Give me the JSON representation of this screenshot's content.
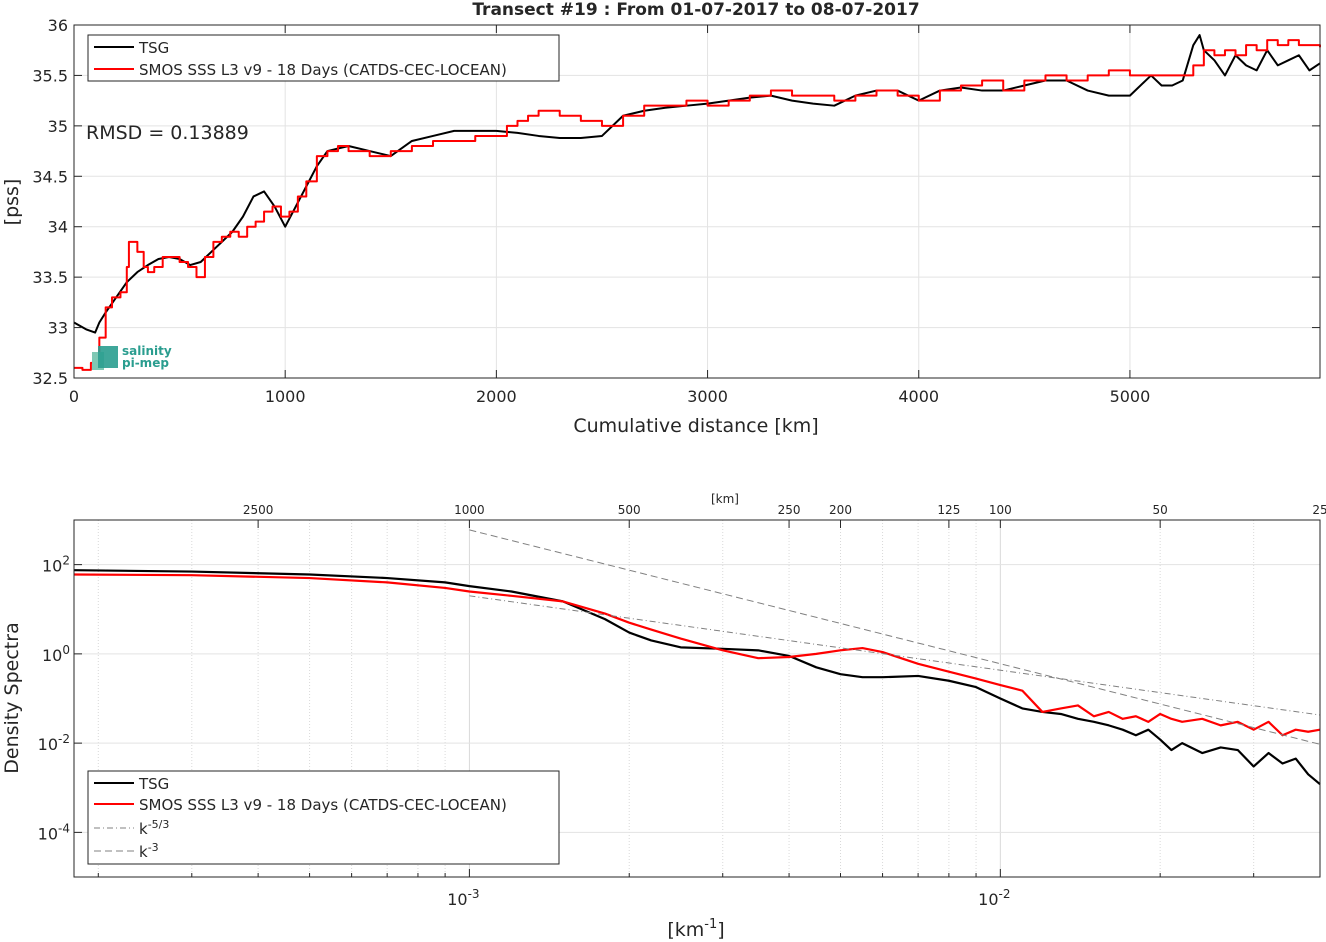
{
  "chart_data": [
    {
      "type": "line",
      "title": "Transect #19 : From 01-07-2017 to 08-07-2017",
      "xlabel": "Cumulative distance [km]",
      "ylabel": "[pss]",
      "xlim": [
        0,
        5900
      ],
      "ylim": [
        32.5,
        36
      ],
      "xticks": [
        "0",
        "1000",
        "2000",
        "3000",
        "4000",
        "5000"
      ],
      "yticks": [
        "32.5",
        "33",
        "33.5",
        "34",
        "34.5",
        "35",
        "35.5",
        "36"
      ],
      "grid": true,
      "legend_position": "top-left",
      "annotation": "RMSD = 0.13889",
      "logo": {
        "line1": "salinity",
        "line2": "pi-mep"
      },
      "series": [
        {
          "name": "TSG",
          "color": "#000000",
          "x": [
            0,
            60,
            100,
            120,
            150,
            200,
            250,
            300,
            350,
            400,
            450,
            500,
            550,
            600,
            650,
            700,
            750,
            800,
            850,
            900,
            950,
            1000,
            1050,
            1100,
            1150,
            1200,
            1300,
            1400,
            1500,
            1600,
            1700,
            1800,
            1900,
            2000,
            2100,
            2200,
            2300,
            2400,
            2500,
            2600,
            2700,
            2800,
            2900,
            3000,
            3100,
            3200,
            3300,
            3400,
            3500,
            3600,
            3700,
            3800,
            3900,
            4000,
            4100,
            4200,
            4300,
            4400,
            4500,
            4600,
            4700,
            4800,
            4900,
            5000,
            5100,
            5150,
            5200,
            5250,
            5300,
            5330,
            5350,
            5400,
            5450,
            5500,
            5550,
            5600,
            5650,
            5700,
            5750,
            5800,
            5850,
            5900
          ],
          "y": [
            33.05,
            32.98,
            32.95,
            33.05,
            33.15,
            33.3,
            33.45,
            33.55,
            33.62,
            33.68,
            33.7,
            33.68,
            33.62,
            33.65,
            33.75,
            33.85,
            33.95,
            34.1,
            34.3,
            34.35,
            34.2,
            34.0,
            34.2,
            34.4,
            34.6,
            34.75,
            34.8,
            34.75,
            34.7,
            34.85,
            34.9,
            34.95,
            34.95,
            34.95,
            34.93,
            34.9,
            34.88,
            34.88,
            34.9,
            35.1,
            35.15,
            35.18,
            35.2,
            35.22,
            35.25,
            35.28,
            35.3,
            35.25,
            35.22,
            35.2,
            35.3,
            35.35,
            35.35,
            35.25,
            35.35,
            35.38,
            35.35,
            35.35,
            35.4,
            35.45,
            35.45,
            35.35,
            35.3,
            35.3,
            35.5,
            35.4,
            35.4,
            35.45,
            35.8,
            35.9,
            35.75,
            35.65,
            35.5,
            35.7,
            35.6,
            35.55,
            35.75,
            35.6,
            35.65,
            35.7,
            35.55,
            35.62
          ]
        },
        {
          "name": "SMOS SSS L3 v9 - 18 Days (CATDS-CEC-LOCEAN)",
          "color": "#ff0000",
          "x": [
            0,
            40,
            80,
            100,
            120,
            150,
            180,
            220,
            250,
            260,
            300,
            330,
            350,
            380,
            420,
            460,
            500,
            540,
            580,
            620,
            660,
            700,
            740,
            780,
            820,
            860,
            900,
            940,
            980,
            1020,
            1060,
            1100,
            1150,
            1200,
            1250,
            1300,
            1400,
            1500,
            1600,
            1700,
            1800,
            1900,
            2000,
            2050,
            2100,
            2150,
            2200,
            2250,
            2300,
            2400,
            2500,
            2600,
            2700,
            2800,
            2900,
            3000,
            3100,
            3200,
            3300,
            3400,
            3500,
            3600,
            3700,
            3800,
            3900,
            4000,
            4100,
            4200,
            4300,
            4400,
            4500,
            4600,
            4700,
            4800,
            4900,
            5000,
            5100,
            5200,
            5300,
            5350,
            5400,
            5450,
            5500,
            5550,
            5600,
            5650,
            5700,
            5750,
            5800,
            5850,
            5900
          ],
          "y": [
            32.6,
            32.58,
            32.65,
            32.7,
            32.9,
            33.2,
            33.3,
            33.35,
            33.6,
            33.85,
            33.75,
            33.6,
            33.55,
            33.6,
            33.7,
            33.7,
            33.65,
            33.6,
            33.5,
            33.7,
            33.85,
            33.9,
            33.95,
            33.9,
            34.0,
            34.05,
            34.15,
            34.2,
            34.1,
            34.15,
            34.3,
            34.45,
            34.7,
            34.75,
            34.8,
            34.75,
            34.7,
            34.75,
            34.8,
            34.85,
            34.85,
            34.9,
            34.9,
            35.0,
            35.05,
            35.1,
            35.15,
            35.15,
            35.1,
            35.05,
            35.0,
            35.1,
            35.2,
            35.2,
            35.25,
            35.2,
            35.25,
            35.3,
            35.35,
            35.3,
            35.3,
            35.25,
            35.3,
            35.35,
            35.3,
            35.25,
            35.35,
            35.4,
            35.45,
            35.35,
            35.45,
            35.5,
            35.45,
            35.5,
            35.55,
            35.5,
            35.5,
            35.5,
            35.6,
            35.75,
            35.7,
            35.75,
            35.7,
            35.8,
            35.75,
            35.85,
            35.8,
            35.85,
            35.8,
            35.8,
            35.78
          ]
        }
      ]
    },
    {
      "type": "line",
      "xlabel": "[km-1]",
      "ylabel": "Density Spectra",
      "top_axis_label": "[km]",
      "xscale": "log",
      "yscale": "log",
      "xlim": [
        0.00018,
        0.04
      ],
      "ylim": [
        1e-05,
        1000
      ],
      "xticks": [
        "10-3",
        "10-2"
      ],
      "yticks": [
        "10-4",
        "10-2",
        "100",
        "102"
      ],
      "top_ticks": [
        {
          "label": "2500",
          "km": 2500
        },
        {
          "label": "1000",
          "km": 1000
        },
        {
          "label": "500",
          "km": 500
        },
        {
          "label": "250",
          "km": 250
        },
        {
          "label": "200",
          "km": 200
        },
        {
          "label": "125",
          "km": 125
        },
        {
          "label": "100",
          "km": 100
        },
        {
          "label": "50",
          "km": 50
        },
        {
          "label": "25",
          "km": 25
        }
      ],
      "grid": true,
      "legend_position": "bottom-left",
      "series": [
        {
          "name": "TSG",
          "color": "#000000",
          "x": [
            0.00018,
            0.0003,
            0.0005,
            0.0007,
            0.0009,
            0.001,
            0.0012,
            0.0015,
            0.0018,
            0.002,
            0.0022,
            0.0025,
            0.003,
            0.0035,
            0.004,
            0.0045,
            0.005,
            0.0055,
            0.006,
            0.007,
            0.008,
            0.009,
            0.01,
            0.011,
            0.012,
            0.013,
            0.014,
            0.015,
            0.016,
            0.017,
            0.018,
            0.019,
            0.02,
            0.021,
            0.022,
            0.024,
            0.026,
            0.028,
            0.03,
            0.032,
            0.034,
            0.036,
            0.038,
            0.04
          ],
          "y": [
            75,
            70,
            60,
            50,
            40,
            33,
            25,
            15,
            6,
            3,
            2,
            1.4,
            1.3,
            1.2,
            0.9,
            0.5,
            0.35,
            0.3,
            0.3,
            0.32,
            0.25,
            0.18,
            0.1,
            0.06,
            0.05,
            0.045,
            0.035,
            0.03,
            0.025,
            0.02,
            0.015,
            0.02,
            0.012,
            0.007,
            0.01,
            0.006,
            0.008,
            0.007,
            0.003,
            0.006,
            0.0035,
            0.0045,
            0.002,
            0.0012
          ]
        },
        {
          "name": "SMOS SSS L3 v9 - 18 Days (CATDS-CEC-LOCEAN)",
          "color": "#ff0000",
          "x": [
            0.00018,
            0.0003,
            0.0005,
            0.0007,
            0.0009,
            0.001,
            0.0012,
            0.0015,
            0.0018,
            0.002,
            0.0022,
            0.0025,
            0.003,
            0.0035,
            0.004,
            0.0045,
            0.005,
            0.0055,
            0.006,
            0.007,
            0.008,
            0.009,
            0.01,
            0.011,
            0.012,
            0.013,
            0.014,
            0.015,
            0.016,
            0.017,
            0.018,
            0.019,
            0.02,
            0.021,
            0.022,
            0.024,
            0.026,
            0.028,
            0.03,
            0.032,
            0.034,
            0.036,
            0.038,
            0.04
          ],
          "y": [
            60,
            58,
            50,
            40,
            30,
            25,
            20,
            15,
            8,
            5,
            3.5,
            2.2,
            1.2,
            0.8,
            0.85,
            1.0,
            1.2,
            1.35,
            1.1,
            0.6,
            0.4,
            0.28,
            0.2,
            0.15,
            0.05,
            0.06,
            0.07,
            0.04,
            0.05,
            0.035,
            0.04,
            0.03,
            0.045,
            0.035,
            0.03,
            0.035,
            0.025,
            0.03,
            0.02,
            0.03,
            0.015,
            0.02,
            0.018,
            0.02
          ]
        },
        {
          "name": "k-5/3",
          "color": "#808080",
          "dash": "dashdot",
          "x": [
            0.001,
            0.04
          ],
          "y": [
            20,
            0.0427
          ]
        },
        {
          "name": "k-3",
          "color": "#808080",
          "dash": "dashed",
          "x": [
            0.001,
            0.04
          ],
          "y": [
            600,
            0.0094
          ]
        }
      ]
    }
  ]
}
